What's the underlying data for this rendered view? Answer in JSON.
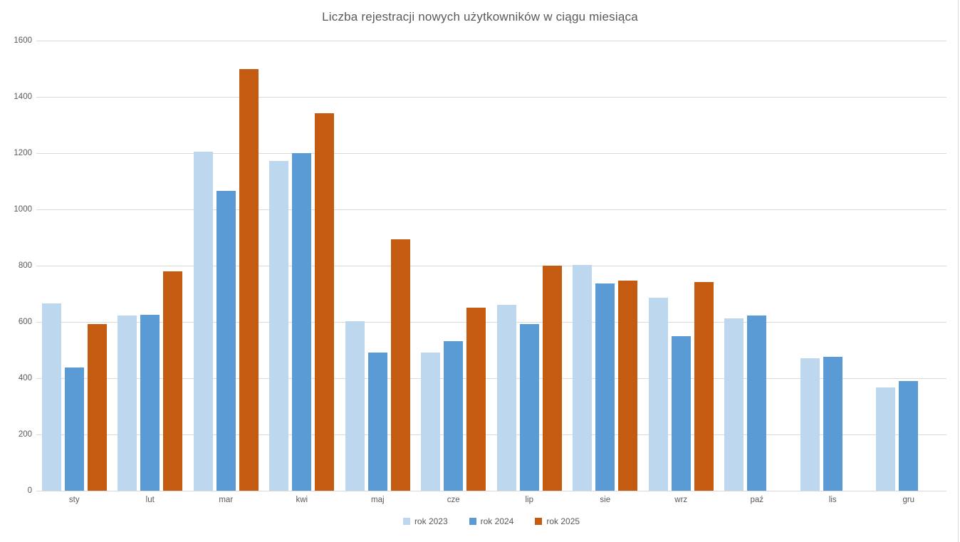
{
  "title": "Liczba rejestracji nowych użytkowników w ciągu miesiąca",
  "colors": {
    "background": "#FFFFFF",
    "gridline": "#D9D9D9",
    "axis_line": "#D9D9D9",
    "text": "#595959",
    "series_2023": "#BDD7EE",
    "series_2024": "#5B9BD5",
    "series_2025": "#C55A11"
  },
  "chart_data": {
    "type": "bar",
    "title": "Liczba rejestracji nowych użytkowników w ciągu miesiąca",
    "categories": [
      "sty",
      "lut",
      "mar",
      "kwi",
      "maj",
      "cze",
      "lip",
      "sie",
      "wrz",
      "paź",
      "lis",
      "gru"
    ],
    "series": [
      {
        "name": "rok 2023",
        "color": "#BDD7EE",
        "values": [
          667,
          622,
          1204,
          1173,
          602,
          491,
          661,
          802,
          686,
          612,
          470,
          367
        ]
      },
      {
        "name": "rok 2024",
        "color": "#5B9BD5",
        "values": [
          438,
          625,
          1066,
          1201,
          491,
          532,
          593,
          737,
          550,
          622,
          475,
          389
        ]
      },
      {
        "name": "rok 2025",
        "color": "#C55A11",
        "values": [
          593,
          779,
          1500,
          1341,
          894,
          650,
          799,
          747,
          742,
          null,
          null,
          null
        ]
      }
    ],
    "xlabel": "",
    "ylabel": "",
    "ylim": [
      0,
      1600
    ],
    "yticks": [
      0,
      200,
      400,
      600,
      800,
      1000,
      1200,
      1400,
      1600
    ],
    "grid": true,
    "legend_position": "bottom-center"
  }
}
